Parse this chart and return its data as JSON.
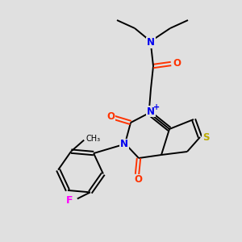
{
  "background_color": "#e0e0e0",
  "atom_colors": {
    "N": "#0000ee",
    "O": "#ff3300",
    "S": "#bbaa00",
    "F": "#ff00ff",
    "C": "#000000"
  },
  "figsize": [
    3.0,
    3.0
  ],
  "dpi": 100
}
